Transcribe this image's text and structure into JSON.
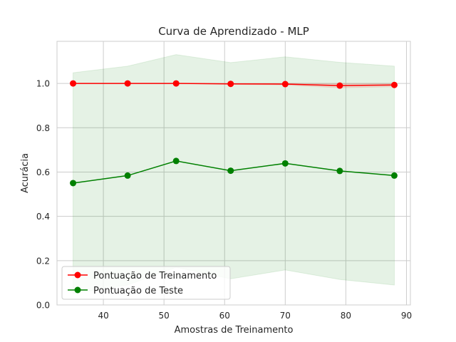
{
  "chart_data": {
    "type": "line",
    "title": "Curva de Aprendizado - MLP",
    "xlabel": "Amostras de Treinamento",
    "ylabel": "Acurácia",
    "xlim": [
      32.35,
      90.65
    ],
    "ylim": [
      0.0,
      1.19
    ],
    "xticks": [
      40,
      50,
      60,
      70,
      80,
      90
    ],
    "yticks": [
      0.0,
      0.2,
      0.4,
      0.6,
      0.8,
      1.0
    ],
    "xtick_labels": [
      "40",
      "50",
      "60",
      "70",
      "80",
      "90"
    ],
    "ytick_labels": [
      "0.0",
      "0.2",
      "0.4",
      "0.6",
      "0.8",
      "1.0"
    ],
    "grid": true,
    "legend_position": "lower-left",
    "x": [
      35,
      44,
      52,
      61,
      70,
      79,
      88
    ],
    "series": [
      {
        "name": "Pontuação de Treinamento",
        "color": "#ff0000",
        "values": [
          1.0,
          1.0,
          1.0,
          0.998,
          0.997,
          0.99,
          0.993
        ],
        "band_lower": [
          1.0,
          1.0,
          1.0,
          0.996,
          0.993,
          0.98,
          0.985
        ],
        "band_upper": [
          1.0,
          1.0,
          1.0,
          1.0,
          1.0,
          1.0,
          1.0
        ]
      },
      {
        "name": "Pontuação de Teste",
        "color": "#008000",
        "values": [
          0.55,
          0.584,
          0.65,
          0.606,
          0.639,
          0.605,
          0.584
        ],
        "band_lower": [
          0.052,
          0.09,
          0.17,
          0.118,
          0.158,
          0.115,
          0.09
        ],
        "band_upper": [
          1.048,
          1.078,
          1.13,
          1.094,
          1.12,
          1.095,
          1.078
        ]
      }
    ]
  }
}
